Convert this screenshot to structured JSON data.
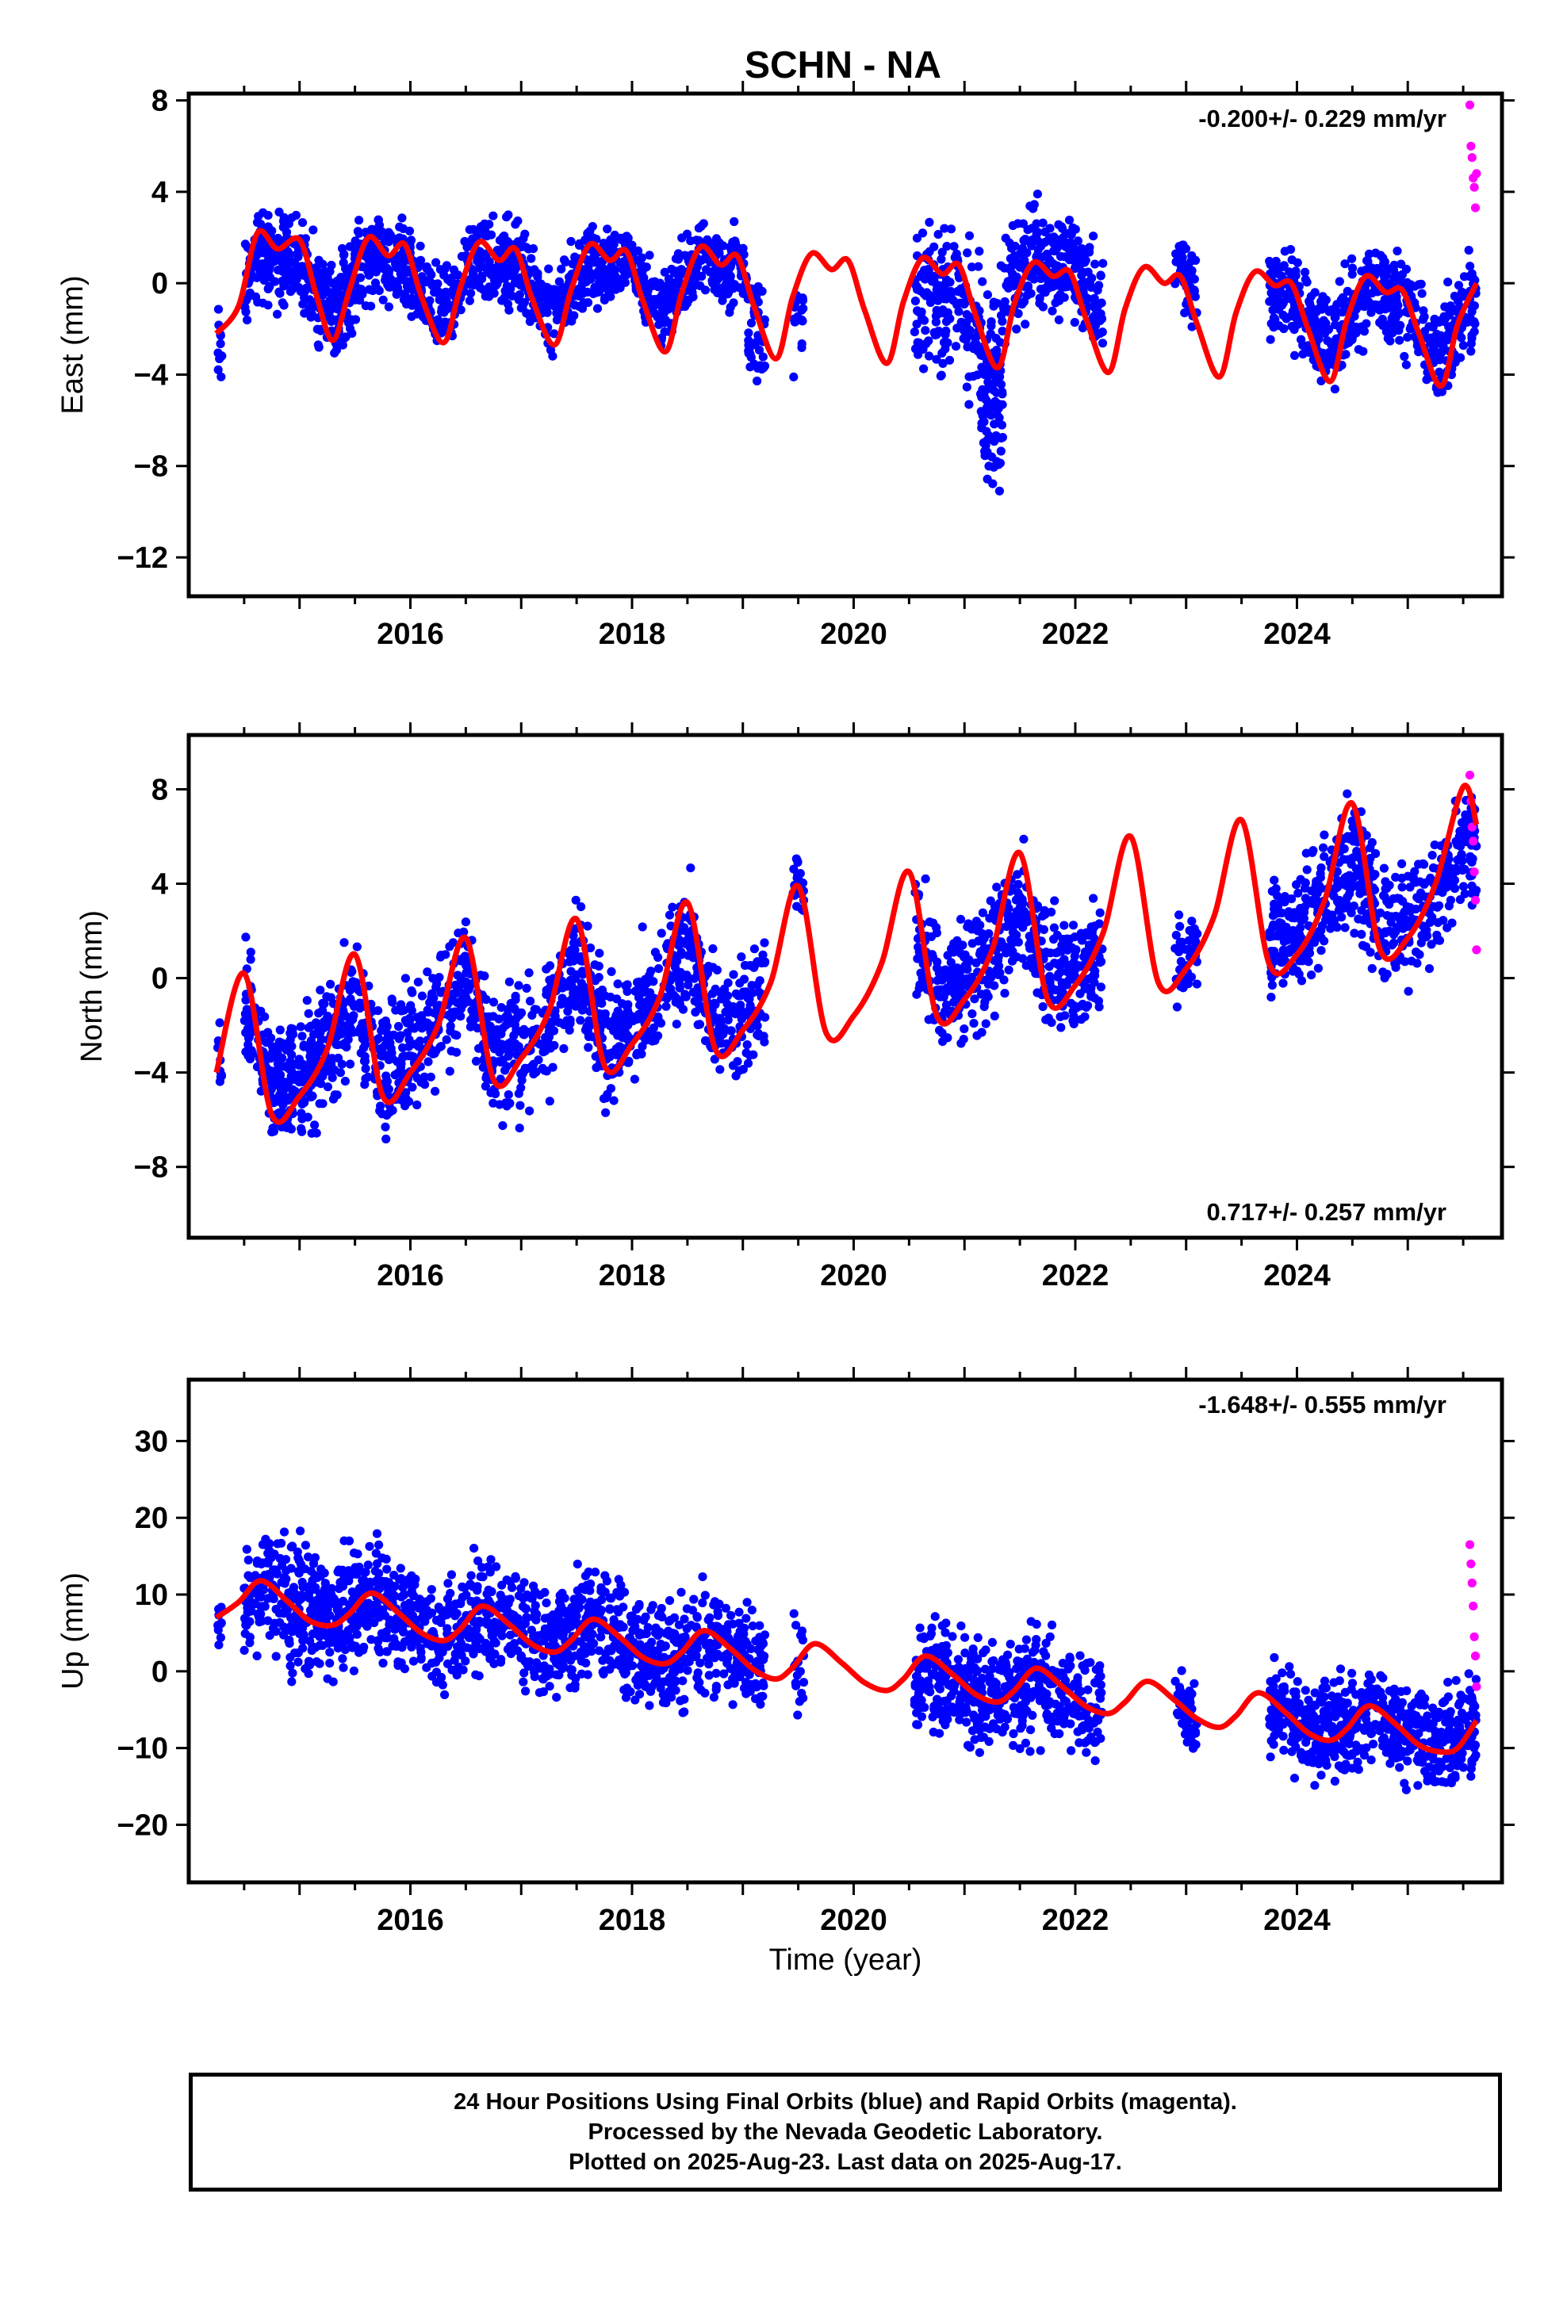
{
  "title": "SCHN - NA",
  "x_axis_label": "Time (year)",
  "caption": {
    "line1": "24 Hour Positions Using Final Orbits (blue) and Rapid Orbits (magenta).",
    "line2": "Processed by the Nevada Geodetic Laboratory.",
    "line3": "Plotted on 2025-Aug-23. Last data on 2025-Aug-17."
  },
  "colors": {
    "final_orbits": "#0000ff",
    "rapid_orbits": "#ff00ff",
    "model": "#ff0000",
    "frame": "#000000"
  },
  "chart_data": [
    {
      "type": "scatter",
      "panel": "east",
      "ylabel": "East (mm)",
      "rate_text": "-0.200+/- 0.229 mm/yr",
      "rate_position": "top-right",
      "xlim": [
        2014.0,
        2025.85
      ],
      "ylim": [
        -13.7,
        8.3
      ],
      "xticks": [
        2016,
        2018,
        2020,
        2022,
        2024
      ],
      "xtick_labels": [
        "2016",
        "2018",
        "2020",
        "2022",
        "2024"
      ],
      "yticks": [
        -12,
        -8,
        -4,
        0,
        4,
        8
      ],
      "ytick_labels": [
        "−12",
        "−8",
        "−4",
        "0",
        "4",
        "8"
      ],
      "grid": false,
      "model": {
        "name": "model fit",
        "x": [
          2014.25,
          2014.45,
          2014.62,
          2014.8,
          2015.0,
          2015.15,
          2015.3,
          2015.45,
          2015.62,
          2015.8,
          2015.95,
          2016.1,
          2016.3,
          2016.45,
          2016.62,
          2016.8,
          2016.95,
          2017.1,
          2017.3,
          2017.45,
          2017.62,
          2017.8,
          2017.95,
          2018.1,
          2018.3,
          2018.45,
          2018.62,
          2018.8,
          2018.95,
          2019.1,
          2019.3,
          2019.45,
          2019.62,
          2019.8,
          2019.95,
          2020.1,
          2020.3,
          2020.45,
          2020.62,
          2020.8,
          2020.95,
          2021.1,
          2021.3,
          2021.45,
          2021.62,
          2021.8,
          2021.95,
          2022.1,
          2022.3,
          2022.45,
          2022.62,
          2022.8,
          2022.95,
          2023.1,
          2023.3,
          2023.45,
          2023.62,
          2023.8,
          2023.95,
          2024.1,
          2024.3,
          2024.45,
          2024.62,
          2024.8,
          2024.95,
          2025.1,
          2025.3,
          2025.45,
          2025.62
        ],
        "y": [
          -2.2,
          -1.0,
          2.2,
          1.5,
          1.9,
          -0.5,
          -2.5,
          -0.3,
          2.0,
          1.2,
          1.7,
          -0.6,
          -2.6,
          -0.2,
          1.8,
          1.0,
          1.5,
          -0.7,
          -2.7,
          -0.3,
          1.7,
          1.0,
          1.4,
          -0.8,
          -3.0,
          -0.4,
          1.6,
          0.8,
          1.2,
          -1.0,
          -3.3,
          -0.6,
          1.3,
          0.6,
          1.0,
          -1.2,
          -3.5,
          -0.8,
          1.1,
          0.4,
          0.8,
          -1.4,
          -3.7,
          -0.9,
          0.9,
          0.3,
          0.5,
          -1.6,
          -3.9,
          -1.1,
          0.7,
          0.0,
          0.3,
          -1.8,
          -4.1,
          -1.3,
          0.5,
          -0.1,
          0.0,
          -2.0,
          -4.3,
          -1.6,
          0.3,
          -0.4,
          -0.3,
          -2.2,
          -4.5,
          -1.8,
          0.0
        ]
      },
      "rapid_orbits": {
        "name": "Rapid Orbits",
        "x": [
          2025.56,
          2025.57,
          2025.58,
          2025.59,
          2025.6,
          2025.61,
          2025.62
        ],
        "y": [
          7.8,
          6.0,
          5.5,
          4.6,
          4.2,
          3.3,
          4.8
        ]
      },
      "final_orbits": {
        "name": "Final Orbits",
        "segments": [
          {
            "start": 2014.26,
            "end": 2014.3,
            "base": -4.5,
            "scatter": 1.5,
            "count": 10
          },
          {
            "start": 2014.5,
            "end": 2015.75,
            "base": 0.2,
            "scatter": 1.4,
            "count": 430
          },
          {
            "start": 2015.75,
            "end": 2017.9,
            "base": 0.0,
            "scatter": 1.3,
            "count": 620
          },
          {
            "start": 2017.9,
            "end": 2019.05,
            "base": 0.6,
            "scatter": 1.2,
            "count": 320
          },
          {
            "start": 2019.05,
            "end": 2019.2,
            "base": -2.8,
            "scatter": 1.8,
            "count": 40
          },
          {
            "start": 2019.45,
            "end": 2019.55,
            "base": -3.5,
            "scatter": 1.5,
            "count": 20
          },
          {
            "start": 2020.55,
            "end": 2021.35,
            "base": -2.5,
            "scatter": 2.2,
            "count": 220
          },
          {
            "start": 2021.15,
            "end": 2021.35,
            "base": -9.5,
            "scatter": 2.0,
            "count": 60
          },
          {
            "start": 2021.35,
            "end": 2022.25,
            "base": 1.5,
            "scatter": 1.6,
            "count": 260
          },
          {
            "start": 2022.9,
            "end": 2023.1,
            "base": 0.8,
            "scatter": 1.3,
            "count": 50
          },
          {
            "start": 2023.75,
            "end": 2025.62,
            "base": -1.2,
            "scatter": 1.5,
            "count": 560
          }
        ]
      }
    },
    {
      "type": "scatter",
      "panel": "north",
      "ylabel": "North (mm)",
      "rate_text": "0.717+/- 0.257 mm/yr",
      "rate_position": "bottom-right",
      "xlim": [
        2014.0,
        2025.85
      ],
      "ylim": [
        -11.0,
        10.3
      ],
      "xticks": [
        2016,
        2018,
        2020,
        2022,
        2024
      ],
      "xtick_labels": [
        "2016",
        "2018",
        "2020",
        "2022",
        "2024"
      ],
      "yticks": [
        -8,
        -4,
        0,
        4,
        8
      ],
      "ytick_labels": [
        "−8",
        "−4",
        "0",
        "4",
        "8"
      ],
      "grid": false,
      "model": {
        "name": "model fit",
        "x": [
          2014.25,
          2014.5,
          2014.75,
          2015.0,
          2015.25,
          2015.5,
          2015.75,
          2016.0,
          2016.25,
          2016.5,
          2016.75,
          2017.0,
          2017.25,
          2017.5,
          2017.75,
          2018.0,
          2018.25,
          2018.5,
          2018.75,
          2019.0,
          2019.25,
          2019.5,
          2019.75,
          2020.0,
          2020.25,
          2020.5,
          2020.75,
          2021.0,
          2021.25,
          2021.5,
          2021.75,
          2022.0,
          2022.25,
          2022.5,
          2022.75,
          2023.0,
          2023.25,
          2023.5,
          2023.75,
          2024.0,
          2024.25,
          2024.5,
          2024.75,
          2025.0,
          2025.25,
          2025.5,
          2025.62
        ],
        "y": [
          -4.0,
          0.2,
          -5.8,
          -5.0,
          -3.0,
          1.0,
          -5.0,
          -4.0,
          -2.0,
          1.7,
          -4.3,
          -3.4,
          -1.4,
          2.5,
          -3.7,
          -2.8,
          -0.8,
          3.2,
          -3.0,
          -2.2,
          -0.2,
          3.9,
          -2.3,
          -1.6,
          0.6,
          4.5,
          -1.6,
          -0.9,
          1.2,
          5.3,
          -0.9,
          -0.3,
          1.9,
          6.0,
          -0.2,
          0.4,
          2.6,
          6.7,
          0.6,
          1.0,
          3.3,
          7.4,
          1.2,
          1.7,
          4.0,
          8.1,
          6.5
        ]
      },
      "rapid_orbits": {
        "name": "Rapid Orbits",
        "x": [
          2025.56,
          2025.57,
          2025.58,
          2025.59,
          2025.6,
          2025.61,
          2025.62
        ],
        "y": [
          8.6,
          7.5,
          6.4,
          5.8,
          4.5,
          3.3,
          1.2
        ]
      },
      "final_orbits": {
        "name": "Final Orbits",
        "segments": [
          {
            "start": 2014.26,
            "end": 2014.3,
            "base": -4.5,
            "scatter": 1.2,
            "count": 10
          },
          {
            "start": 2014.5,
            "end": 2015.75,
            "base": -3.0,
            "scatter": 1.8,
            "count": 430
          },
          {
            "start": 2015.75,
            "end": 2017.9,
            "base": -2.0,
            "scatter": 1.9,
            "count": 620
          },
          {
            "start": 2017.9,
            "end": 2019.2,
            "base": -0.5,
            "scatter": 1.8,
            "count": 360
          },
          {
            "start": 2019.45,
            "end": 2019.55,
            "base": 5.5,
            "scatter": 1.2,
            "count": 20
          },
          {
            "start": 2020.55,
            "end": 2022.25,
            "base": 1.0,
            "scatter": 1.8,
            "count": 480
          },
          {
            "start": 2022.9,
            "end": 2023.1,
            "base": 1.0,
            "scatter": 1.2,
            "count": 50
          },
          {
            "start": 2023.75,
            "end": 2025.62,
            "base": 3.0,
            "scatter": 1.8,
            "count": 560
          }
        ]
      }
    },
    {
      "type": "scatter",
      "panel": "up",
      "ylabel": "Up (mm)",
      "rate_text": "-1.648+/- 0.555 mm/yr",
      "rate_position": "top-right",
      "xlabel": "Time (year)",
      "xlim": [
        2014.0,
        2025.85
      ],
      "ylim": [
        -27.5,
        38.0
      ],
      "xticks": [
        2016,
        2018,
        2020,
        2022,
        2024
      ],
      "xtick_labels": [
        "2016",
        "2018",
        "2020",
        "2022",
        "2024"
      ],
      "yticks": [
        -20,
        -10,
        0,
        10,
        20,
        30
      ],
      "ytick_labels": [
        "−20",
        "−10",
        "0",
        "10",
        "20",
        "30"
      ],
      "grid": false,
      "model": {
        "name": "model fit",
        "x": [
          2014.25,
          2014.45,
          2014.65,
          2014.9,
          2015.1,
          2015.3,
          2015.45,
          2015.65,
          2015.9,
          2016.1,
          2016.3,
          2016.45,
          2016.65,
          2016.9,
          2017.1,
          2017.3,
          2017.45,
          2017.65,
          2017.9,
          2018.1,
          2018.3,
          2018.45,
          2018.65,
          2018.9,
          2019.1,
          2019.3,
          2019.45,
          2019.65,
          2019.9,
          2020.1,
          2020.3,
          2020.45,
          2020.65,
          2020.9,
          2021.1,
          2021.3,
          2021.45,
          2021.65,
          2021.9,
          2022.1,
          2022.3,
          2022.45,
          2022.65,
          2022.9,
          2023.1,
          2023.3,
          2023.45,
          2023.65,
          2023.9,
          2024.1,
          2024.3,
          2024.45,
          2024.65,
          2024.9,
          2025.1,
          2025.3,
          2025.45,
          2025.62
        ],
        "y": [
          7.0,
          9.0,
          11.8,
          9.0,
          6.5,
          6.0,
          7.5,
          10.2,
          7.5,
          5.0,
          4.0,
          5.5,
          8.5,
          6.0,
          3.5,
          2.5,
          4.0,
          6.8,
          4.3,
          1.8,
          1.0,
          2.5,
          5.3,
          2.8,
          0.2,
          -1.0,
          0.5,
          3.6,
          1.0,
          -1.5,
          -2.5,
          -1.0,
          2.0,
          -0.5,
          -3.0,
          -4.0,
          -2.5,
          0.4,
          -2.2,
          -4.6,
          -5.5,
          -4.0,
          -1.3,
          -3.8,
          -6.2,
          -7.3,
          -5.8,
          -2.8,
          -5.4,
          -8.0,
          -9.0,
          -7.5,
          -4.5,
          -7.0,
          -9.6,
          -10.5,
          -10.0,
          -6.4
        ]
      },
      "rapid_orbits": {
        "name": "Rapid Orbits",
        "x": [
          2025.56,
          2025.57,
          2025.58,
          2025.59,
          2025.6,
          2025.61,
          2025.62
        ],
        "y": [
          16.5,
          14.0,
          11.5,
          8.5,
          4.5,
          2.0,
          -2.0
        ]
      },
      "final_orbits": {
        "name": "Final Orbits",
        "segments": [
          {
            "start": 2014.26,
            "end": 2014.3,
            "base": 6.0,
            "scatter": 2.5,
            "count": 10
          },
          {
            "start": 2014.5,
            "end": 2015.75,
            "base": 9.5,
            "scatter": 5.5,
            "count": 430
          },
          {
            "start": 2015.75,
            "end": 2017.9,
            "base": 6.5,
            "scatter": 5.0,
            "count": 620
          },
          {
            "start": 2017.9,
            "end": 2019.2,
            "base": 2.5,
            "scatter": 5.0,
            "count": 360
          },
          {
            "start": 2019.45,
            "end": 2019.55,
            "base": 2.0,
            "scatter": 6.0,
            "count": 20
          },
          {
            "start": 2020.55,
            "end": 2022.25,
            "base": -3.0,
            "scatter": 5.0,
            "count": 480
          },
          {
            "start": 2022.9,
            "end": 2023.1,
            "base": -6.0,
            "scatter": 4.0,
            "count": 50
          },
          {
            "start": 2023.75,
            "end": 2025.62,
            "base": -7.0,
            "scatter": 4.5,
            "count": 560
          }
        ]
      }
    }
  ]
}
